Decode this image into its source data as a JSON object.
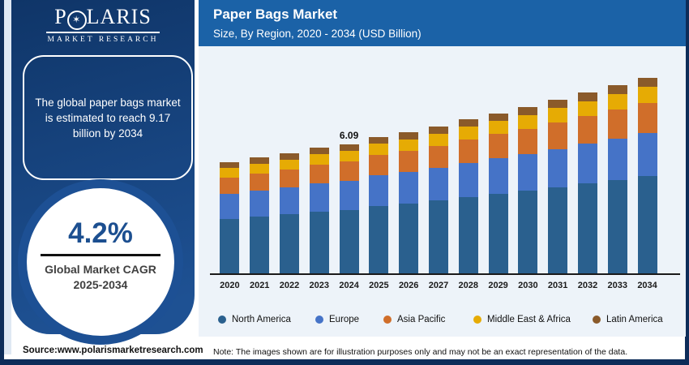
{
  "brand": {
    "p": "P",
    "star": "✶",
    "rest": "LARIS",
    "tagline": "MARKET RESEARCH"
  },
  "sidebar": {
    "headline": "The global paper bags market is estimated to reach 9.17 billion by 2034",
    "cagr": {
      "value": "4.2%",
      "label": "Global Market CAGR",
      "years": "2025-2034"
    }
  },
  "header": {
    "title": "Paper Bags Market",
    "subtitle": "Size, By Region, 2020 - 2034 (USD Billion)"
  },
  "chart_data": {
    "type": "bar",
    "stacked": true,
    "title": "Paper Bags Market",
    "subtitle": "Size, By Region, 2020 - 2034 (USD Billion)",
    "unit": "USD Billion",
    "categories": [
      "2020",
      "2021",
      "2022",
      "2023",
      "2024",
      "2025",
      "2026",
      "2027",
      "2028",
      "2029",
      "2030",
      "2031",
      "2032",
      "2033",
      "2034"
    ],
    "series": [
      {
        "name": "North America",
        "color": "#2a608e",
        "values": [
          2.56,
          2.67,
          2.78,
          2.9,
          2.99,
          3.15,
          3.28,
          3.42,
          3.57,
          3.72,
          3.88,
          4.04,
          4.21,
          4.39,
          4.58
        ]
      },
      {
        "name": "Europe",
        "color": "#4573c7",
        "values": [
          1.18,
          1.23,
          1.27,
          1.32,
          1.37,
          1.43,
          1.48,
          1.54,
          1.6,
          1.66,
          1.72,
          1.79,
          1.86,
          1.93,
          2.0
        ]
      },
      {
        "name": "Asia Pacific",
        "color": "#d06e2a",
        "values": [
          0.76,
          0.79,
          0.83,
          0.87,
          0.91,
          0.95,
          0.99,
          1.04,
          1.09,
          1.14,
          1.19,
          1.24,
          1.3,
          1.36,
          1.42
        ]
      },
      {
        "name": "Middle East & Africa",
        "color": "#e6ab04",
        "values": [
          0.44,
          0.46,
          0.47,
          0.49,
          0.51,
          0.53,
          0.55,
          0.57,
          0.6,
          0.62,
          0.64,
          0.67,
          0.69,
          0.72,
          0.75
        ]
      },
      {
        "name": "Latin America",
        "color": "#8a5a2a",
        "values": [
          0.28,
          0.29,
          0.3,
          0.31,
          0.31,
          0.32,
          0.33,
          0.34,
          0.35,
          0.36,
          0.37,
          0.38,
          0.4,
          0.41,
          0.42
        ]
      }
    ],
    "annotation": {
      "category": "2024",
      "label": "6.09"
    },
    "ylim": [
      0,
      9.6
    ],
    "grid": false,
    "legend_position": "bottom",
    "totals_note": {
      "2024": 6.09,
      "2034": 9.17
    }
  },
  "footer": {
    "source": "Source:www.polarismarketresearch.com",
    "note": "Note: The images shown are for illustration purposes only and may not be an exact representation of the data."
  },
  "colors": {
    "frame_navy": "#0d2c59",
    "sidebar_blue_dark": "#0f3568",
    "sidebar_blue_light": "#1e5193",
    "header_blue": "#1b62a7",
    "panel_bg": "#edf3f9",
    "cagr_text": "#1c4f90"
  }
}
